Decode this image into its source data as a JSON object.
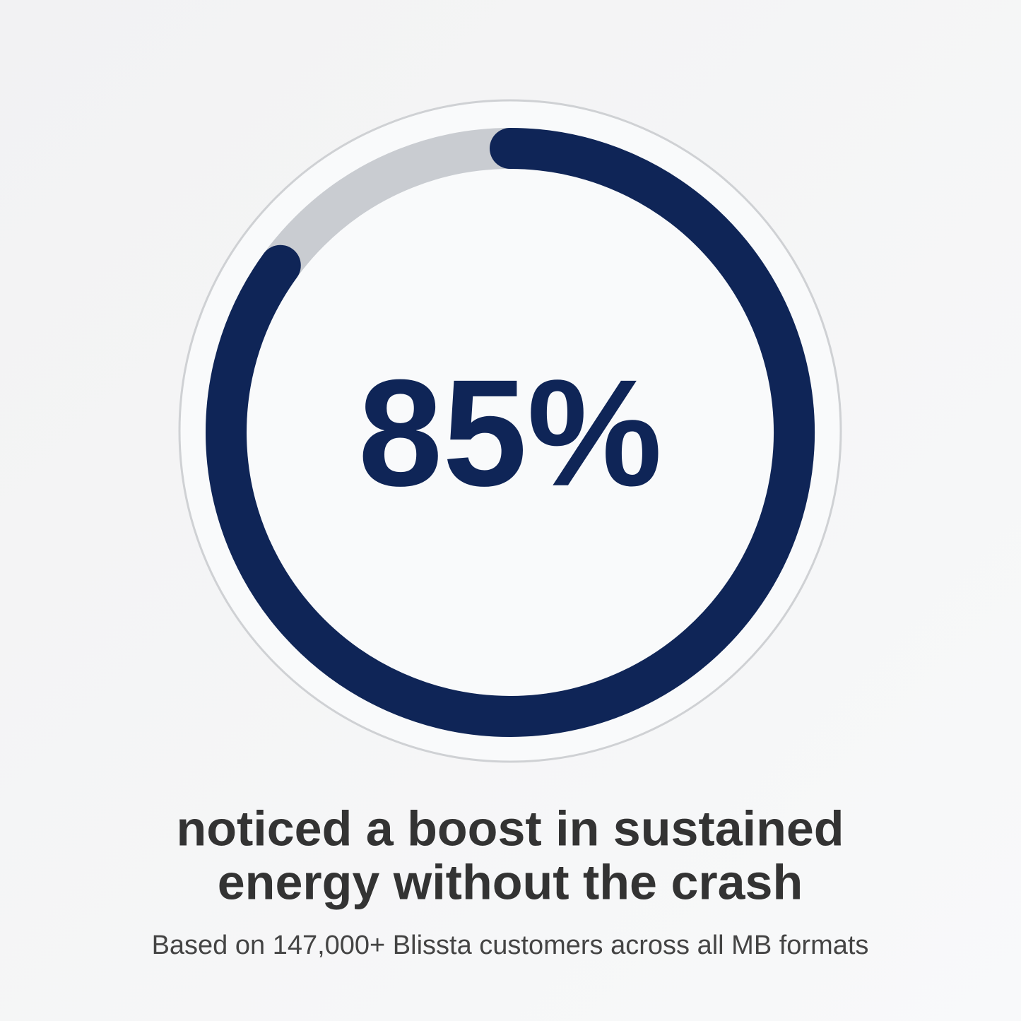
{
  "chart_data": {
    "type": "progress-ring",
    "values": [
      85
    ],
    "value_labels": [
      "85%"
    ],
    "ylim": [
      0,
      100
    ],
    "color": "#0f2557",
    "track_color": "#c9ccd1",
    "headline": [
      "noticed a boost in sustained",
      "energy without the crash"
    ],
    "note": "Based on 147,000+ Blissta customers across all MB formats"
  }
}
